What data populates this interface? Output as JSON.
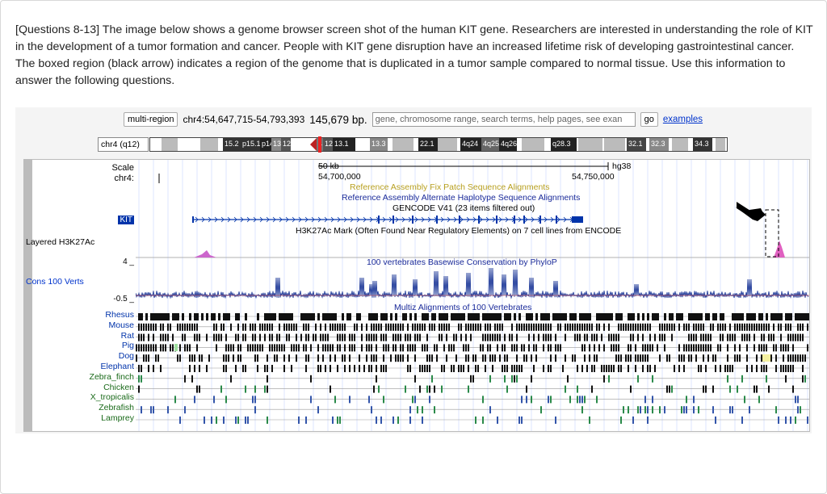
{
  "question": "[Questions 8-13] The image below shows a genome browser screen shot of the human KIT gene. Researchers are interested in understanding the role of KIT in the development of a tumor formation and cancer. People with KIT gene disruption have an increased lifetime risk of developing gastrointestinal cancer. The boxed region (black arrow) indicates a region of the genome that is duplicated in a tumor sample compared to normal tissue. Use this information to answer the following questions.",
  "toolbar": {
    "multi_region": "multi-region",
    "position": "chr4:54,647,715-54,793,393",
    "size": "145,679 bp.",
    "search_placeholder": "gene, chromosome range, search terms, help pages, see exan",
    "go": "go",
    "examples": "examples"
  },
  "ideogram": {
    "chrom_label": "chr4 (q12)",
    "bands": [
      "15.2",
      "p15.1",
      "p14",
      "13",
      "12",
      "4",
      "12",
      "13.1",
      "13.3",
      "22.1",
      "4q24",
      "4q25",
      "4q26",
      "q28.3",
      "32.1",
      "32.3",
      "34.3"
    ]
  },
  "scale": {
    "label": "Scale",
    "chrom": "chr4:",
    "bar": "50 kb",
    "assembly": "hg38",
    "left_coord": "54,700,000",
    "right_coord": "54,750,000"
  },
  "tracks": {
    "fix_patch": "Reference Assembly Fix Patch Sequence Alignments",
    "alt_haplotype": "Reference Assembly Alternate Haplotype Sequence Alignments",
    "gencode": "GENCODE V41 (23 items filtered out)",
    "gene": "KIT",
    "h3k27ac_left": "Layered H3K27Ac",
    "h3k27ac": "H3K27Ac Mark (Often Found Near Regulatory Elements) on 7 cell lines from ENCODE",
    "cons_left": "Cons 100 Verts",
    "cons_max": "4 _",
    "cons_min": "-0.5 _",
    "phylop": "100 vertebrates Basewise Conservation by PhyloP",
    "multiz": "Multiz Alignments of 100 Vertebrates"
  },
  "species": [
    "Rhesus",
    "Mouse",
    "Rat",
    "Pig",
    "Dog",
    "Elephant",
    "Zebra_finch",
    "Chicken",
    "X_tropicalis",
    "Zebrafish",
    "Lamprey"
  ],
  "colors": {
    "link": "#0033cc",
    "h3k27ac": "#e060c0",
    "conservation": "#1f3a99",
    "species_mammal": "#0033aa",
    "species_other": "#1a6a1a"
  }
}
